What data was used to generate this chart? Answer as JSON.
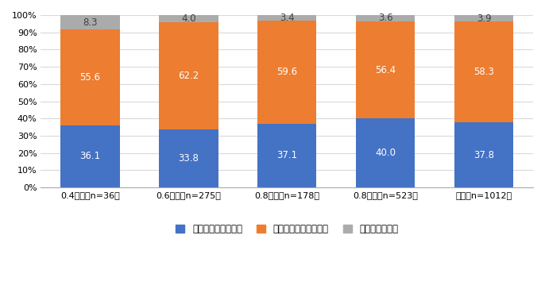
{
  "categories": [
    "0.4未満（n=36）",
    "0.6未満（n=275）",
    "0.8未満（n=178）",
    "0.8以上（n=523）",
    "全体（n=1012）"
  ],
  "series": [
    {
      "label": "完全に一致している",
      "values": [
        36.1,
        33.8,
        37.1,
        40.0,
        37.8
      ],
      "color": "#4472C4"
    },
    {
      "label": "ある程度一致している",
      "values": [
        55.6,
        62.2,
        59.6,
        56.4,
        58.3
      ],
      "color": "#ED7D31"
    },
    {
      "label": "一致していない",
      "values": [
        8.3,
        4.0,
        3.4,
        3.6,
        3.9
      ],
      "color": "#ABABAB"
    }
  ],
  "ylim": [
    0,
    100
  ],
  "yticks": [
    0,
    10,
    20,
    30,
    40,
    50,
    60,
    70,
    80,
    90,
    100
  ],
  "ytick_labels": [
    "0%",
    "10%",
    "20%",
    "30%",
    "40%",
    "50%",
    "60%",
    "70%",
    "80%",
    "90%",
    "100%"
  ],
  "bar_width": 0.6,
  "figsize": [
    6.86,
    3.64
  ],
  "dpi": 100,
  "background_color": "#FFFFFF",
  "grid_color": "#D9D9D9",
  "font_size_labels": 8.5,
  "font_size_ticks": 8.0,
  "font_size_legend": 8.5,
  "label_color_white": "#FFFFFF",
  "label_color_dark": "#404040"
}
